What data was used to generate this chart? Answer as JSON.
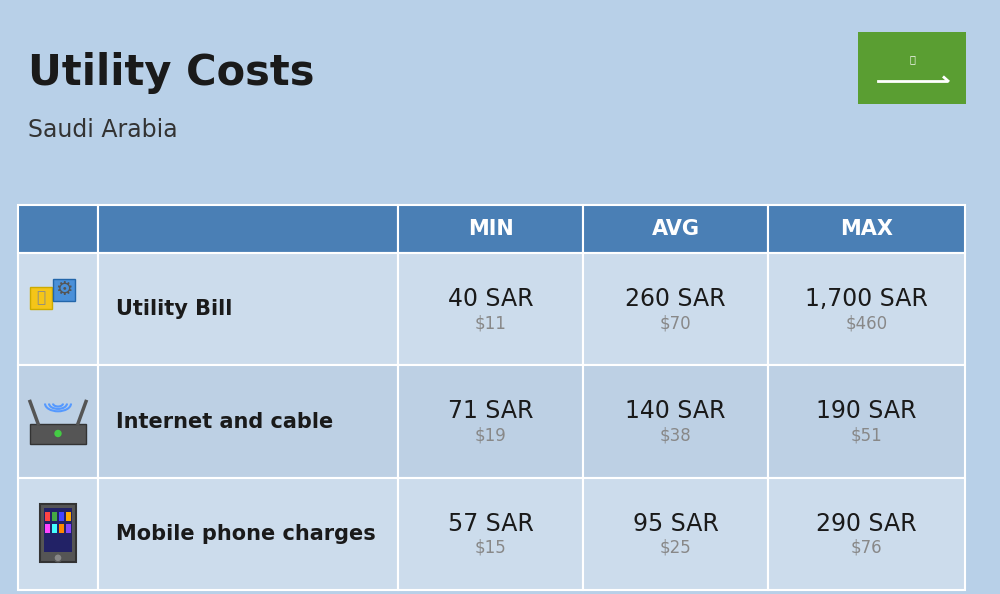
{
  "title": "Utility Costs",
  "subtitle": "Saudi Arabia",
  "bg_color": "#b8d0e8",
  "header_bg": "#4a7fb5",
  "header_text_color": "#ffffff",
  "row_colors": [
    "#ccdcec",
    "#bdd0e4"
  ],
  "header_labels": [
    "MIN",
    "AVG",
    "MAX"
  ],
  "rows": [
    {
      "label": "Utility Bill",
      "min_sar": "40 SAR",
      "min_usd": "$11",
      "avg_sar": "260 SAR",
      "avg_usd": "$70",
      "max_sar": "1,700 SAR",
      "max_usd": "$460"
    },
    {
      "label": "Internet and cable",
      "min_sar": "71 SAR",
      "min_usd": "$19",
      "avg_sar": "140 SAR",
      "avg_usd": "$38",
      "max_sar": "190 SAR",
      "max_usd": "$51"
    },
    {
      "label": "Mobile phone charges",
      "min_sar": "57 SAR",
      "min_usd": "$15",
      "avg_sar": "95 SAR",
      "avg_usd": "$25",
      "max_sar": "290 SAR",
      "max_usd": "$76"
    }
  ],
  "flag_green": "#5a9e32",
  "sar_fontsize": 17,
  "usd_fontsize": 12,
  "label_fontsize": 15,
  "header_fontsize": 15,
  "title_fontsize": 30,
  "subtitle_fontsize": 17
}
